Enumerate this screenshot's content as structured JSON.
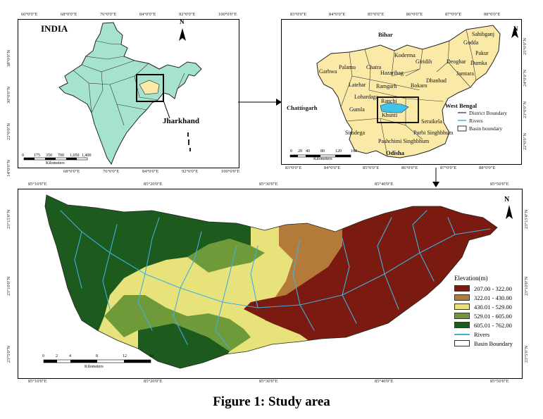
{
  "caption": "Figure 1: Study area",
  "india_panel": {
    "title": "INDIA",
    "highlight_label": "Jharkhand",
    "north": "N",
    "top_ticks": [
      "60°0'0\"E",
      "68°0'0\"E",
      "76°0'0\"E",
      "84°0'0\"E",
      "92°0'0\"E",
      "100°0'0\"E"
    ],
    "bottom_ticks": [
      "68°0'0\"E",
      "76°0'0\"E",
      "84°0'0\"E",
      "92°0'0\"E",
      "100°0'0\"E"
    ],
    "left_ticks": [
      "38°0'0\"N",
      "30°0'0\"N",
      "22°0'0\"N",
      "14°0'0\"N"
    ],
    "scale_numbers": [
      "0",
      "175",
      "350",
      "700",
      "1,050",
      "1,400"
    ],
    "scale_unit": "Kilometers",
    "fill_color": "#a6e3cf"
  },
  "jharkhand_panel": {
    "north": "N",
    "neighbors": [
      "Bihar",
      "West Bengal",
      "Chattisgarh",
      "Odisha"
    ],
    "districts": [
      "Sahibganj",
      "Godda",
      "Pakur",
      "Dumka",
      "Deoghar",
      "Jamtara",
      "Giridih",
      "Koderma",
      "Chatra",
      "Palamu",
      "Garhwa",
      "Hazaribag",
      "Latehar",
      "Lohardaga",
      "Ramgarh",
      "Bokaro",
      "Dhanbad",
      "Ranchi",
      "Khunti",
      "Gumla",
      "Simdega",
      "Seraikela",
      "Pashchimi Singhbhum",
      "Purbi Singhbhum"
    ],
    "legend": [
      "District Boundary",
      "Rivers",
      "Basin boundary"
    ],
    "top_ticks": [
      "83°0'0\"E",
      "84°0'0\"E",
      "85°0'0\"E",
      "86°0'0\"E",
      "87°0'0\"E",
      "88°0'0\"E"
    ],
    "bottom_ticks": [
      "83°0'0\"E",
      "84°0'0\"E",
      "85°0'0\"E",
      "86°0'0\"E",
      "87°0'0\"E",
      "88°0'0\"E"
    ],
    "right_ticks": [
      "25°0'0\"N",
      "24°0'0\"N",
      "23°0'0\"N",
      "22°0'0\"N"
    ],
    "scale_numbers": [
      "0",
      "20",
      "40",
      "80",
      "120",
      "160"
    ],
    "scale_unit": "Kilometers",
    "fill_color": "#fbeaa7"
  },
  "basin_panel": {
    "north": "N",
    "top_ticks": [
      "85°10'0\"E",
      "85°20'0\"E",
      "85°30'0\"E",
      "85°40'0\"E",
      "85°50'0\"E"
    ],
    "bottom_ticks": [
      "85°10'0\"E",
      "85°20'0\"E",
      "85°30'0\"E",
      "85°40'0\"E",
      "85°50'0\"E"
    ],
    "side_ticks": [
      "23°15'0\"N",
      "23°10'0\"N",
      "23°5'0\"N"
    ],
    "scale_numbers": [
      "0",
      "2",
      "4",
      "8",
      "12",
      "16"
    ],
    "scale_unit": "Kilometers",
    "legend_title": "Elevation(m)",
    "elevation_classes": [
      {
        "label": "207.00 - 322.00",
        "color": "#7b1a10"
      },
      {
        "label": "322.01 - 430.00",
        "color": "#b47a3a"
      },
      {
        "label": "430.01 - 529.00",
        "color": "#e8e27a"
      },
      {
        "label": "529.01 - 605.00",
        "color": "#6e9a3a"
      },
      {
        "label": "605.01 - 762.00",
        "color": "#1d5a1d"
      }
    ],
    "legend_rivers": "Rivers",
    "legend_basin": "Basin Boundary",
    "river_color": "#3fb0e0"
  }
}
